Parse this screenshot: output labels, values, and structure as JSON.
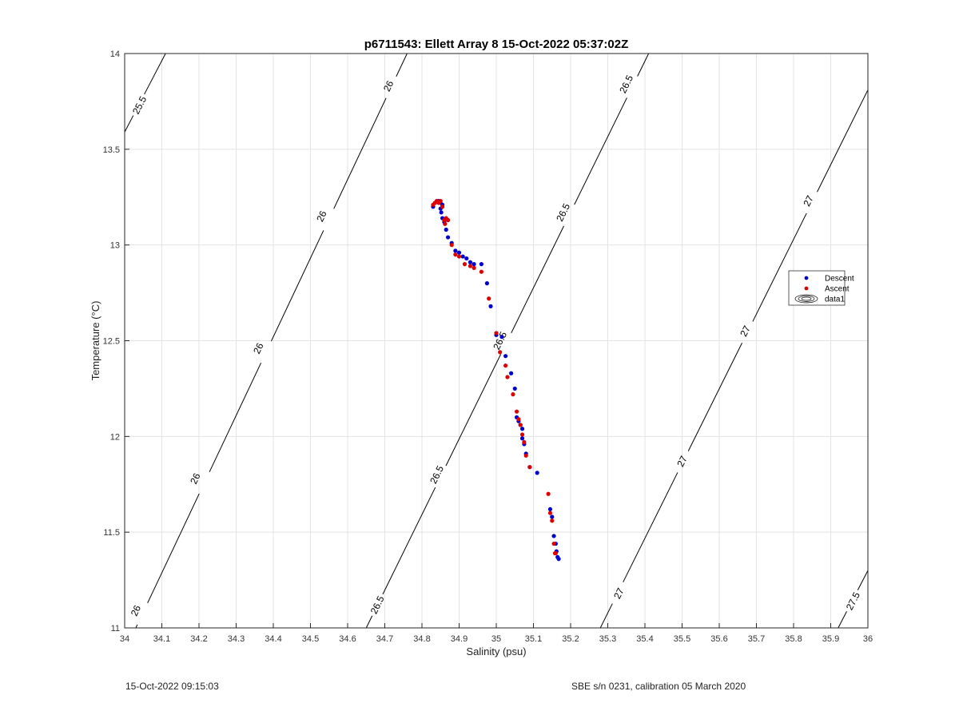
{
  "chart_data": {
    "type": "scatter",
    "title": "p6711543: Ellett Array 8 15-Oct-2022 05:37:02Z",
    "xlabel": "Salinity (psu)",
    "ylabel": "Temperature (°C)",
    "xlim": [
      34,
      36
    ],
    "ylim": [
      11,
      14
    ],
    "xticks": [
      34,
      34.1,
      34.2,
      34.3,
      34.4,
      34.5,
      34.6,
      34.7,
      34.8,
      34.9,
      35,
      35.1,
      35.2,
      35.3,
      35.4,
      35.5,
      35.6,
      35.7,
      35.8,
      35.9,
      36
    ],
    "xtick_labels": [
      "34",
      "34.1",
      "34.2",
      "34.3",
      "34.4",
      "34.5",
      "34.6",
      "34.7",
      "34.8",
      "34.9",
      "35",
      "35.1",
      "35.2",
      "35.3",
      "35.4",
      "35.5",
      "35.6",
      "35.7",
      "35.8",
      "35.9",
      "36"
    ],
    "yticks": [
      11,
      11.5,
      12,
      12.5,
      13,
      13.5,
      14
    ],
    "ytick_labels": [
      "11",
      "11.5",
      "12",
      "12.5",
      "13",
      "13.5",
      "14"
    ],
    "grid": true,
    "legend_position": "right",
    "legend": [
      {
        "name": "Descent",
        "color": "#0000cc"
      },
      {
        "name": "Ascent",
        "color": "#dd0000"
      },
      {
        "name": "data1",
        "color": "#000000"
      }
    ],
    "contours": [
      {
        "level": 25.5,
        "label": "25.5",
        "points": [
          [
            34.0,
            13.59
          ],
          [
            34.11,
            14.0
          ]
        ],
        "label_positions": [
          [
            34.04,
            13.73
          ]
        ]
      },
      {
        "level": 26,
        "label": "26",
        "points": [
          [
            34.03,
            11.0
          ],
          [
            34.76,
            14.0
          ]
        ],
        "label_positions": [
          [
            34.03,
            11.09
          ],
          [
            34.19,
            11.78
          ],
          [
            34.36,
            12.46
          ],
          [
            34.53,
            13.15
          ],
          [
            34.71,
            13.83
          ]
        ]
      },
      {
        "level": 26.5,
        "label": "26.5",
        "points": [
          [
            34.65,
            11.0
          ],
          [
            35.41,
            14.0
          ]
        ],
        "label_positions": [
          [
            34.68,
            11.12
          ],
          [
            34.84,
            11.8
          ],
          [
            35.01,
            12.5
          ],
          [
            35.18,
            13.17
          ],
          [
            35.35,
            13.84
          ]
        ]
      },
      {
        "level": 27,
        "label": "27",
        "points": [
          [
            35.28,
            11.0
          ],
          [
            36.0,
            13.81
          ]
        ],
        "label_positions": [
          [
            35.33,
            11.18
          ],
          [
            35.5,
            11.87
          ],
          [
            35.67,
            12.55
          ],
          [
            35.84,
            13.23
          ]
        ]
      },
      {
        "level": 27.5,
        "label": "27.5",
        "points": [
          [
            35.92,
            11.0
          ],
          [
            36.0,
            11.3
          ]
        ],
        "label_positions": [
          [
            35.96,
            11.14
          ]
        ]
      }
    ],
    "series": [
      {
        "name": "Descent",
        "color": "#0000cc",
        "x": [
          34.83,
          34.835,
          34.84,
          34.845,
          34.85,
          34.855,
          34.85,
          34.852,
          34.855,
          34.86,
          34.865,
          34.87,
          34.88,
          34.89,
          34.9,
          34.91,
          34.92,
          34.93,
          34.94,
          34.96,
          34.975,
          34.985,
          35.0,
          35.015,
          35.025,
          35.04,
          35.05,
          35.055,
          35.06,
          35.065,
          35.07,
          35.07,
          35.075,
          35.08,
          35.09,
          35.11,
          35.145,
          35.15,
          35.155,
          35.16,
          35.162,
          35.165,
          35.168
        ],
        "y": [
          13.2,
          13.22,
          13.23,
          13.23,
          13.22,
          13.21,
          13.19,
          13.17,
          13.14,
          13.12,
          13.08,
          13.04,
          13.01,
          12.97,
          12.96,
          12.94,
          12.93,
          12.91,
          12.9,
          12.9,
          12.8,
          12.68,
          12.53,
          12.52,
          12.42,
          12.33,
          12.25,
          12.1,
          12.08,
          12.06,
          12.04,
          11.99,
          11.96,
          11.91,
          11.84,
          11.81,
          11.62,
          11.58,
          11.48,
          11.44,
          11.4,
          11.37,
          11.36
        ]
      },
      {
        "name": "Ascent",
        "color": "#dd0000",
        "x": [
          34.83,
          34.835,
          34.84,
          34.845,
          34.85,
          34.855,
          34.86,
          34.862,
          34.865,
          34.87,
          34.88,
          34.89,
          34.9,
          34.915,
          34.93,
          34.94,
          34.96,
          34.98,
          35.0,
          35.01,
          35.025,
          35.03,
          35.045,
          35.055,
          35.06,
          35.065,
          35.07,
          35.075,
          35.08,
          35.09,
          35.14,
          35.145,
          35.15,
          35.155,
          35.158,
          35.16
        ],
        "y": [
          13.21,
          13.22,
          13.23,
          13.22,
          13.23,
          13.2,
          13.13,
          13.11,
          13.14,
          13.13,
          13.0,
          12.95,
          12.94,
          12.9,
          12.89,
          12.88,
          12.86,
          12.72,
          12.54,
          12.44,
          12.37,
          12.31,
          12.22,
          12.13,
          12.09,
          12.06,
          12.01,
          11.97,
          11.9,
          11.84,
          11.7,
          11.6,
          11.56,
          11.44,
          11.39,
          11.39
        ]
      }
    ]
  },
  "footer": {
    "left": "15-Oct-2022 09:15:03",
    "right": "SBE s/n 0231, calibration 05 March 2020"
  }
}
